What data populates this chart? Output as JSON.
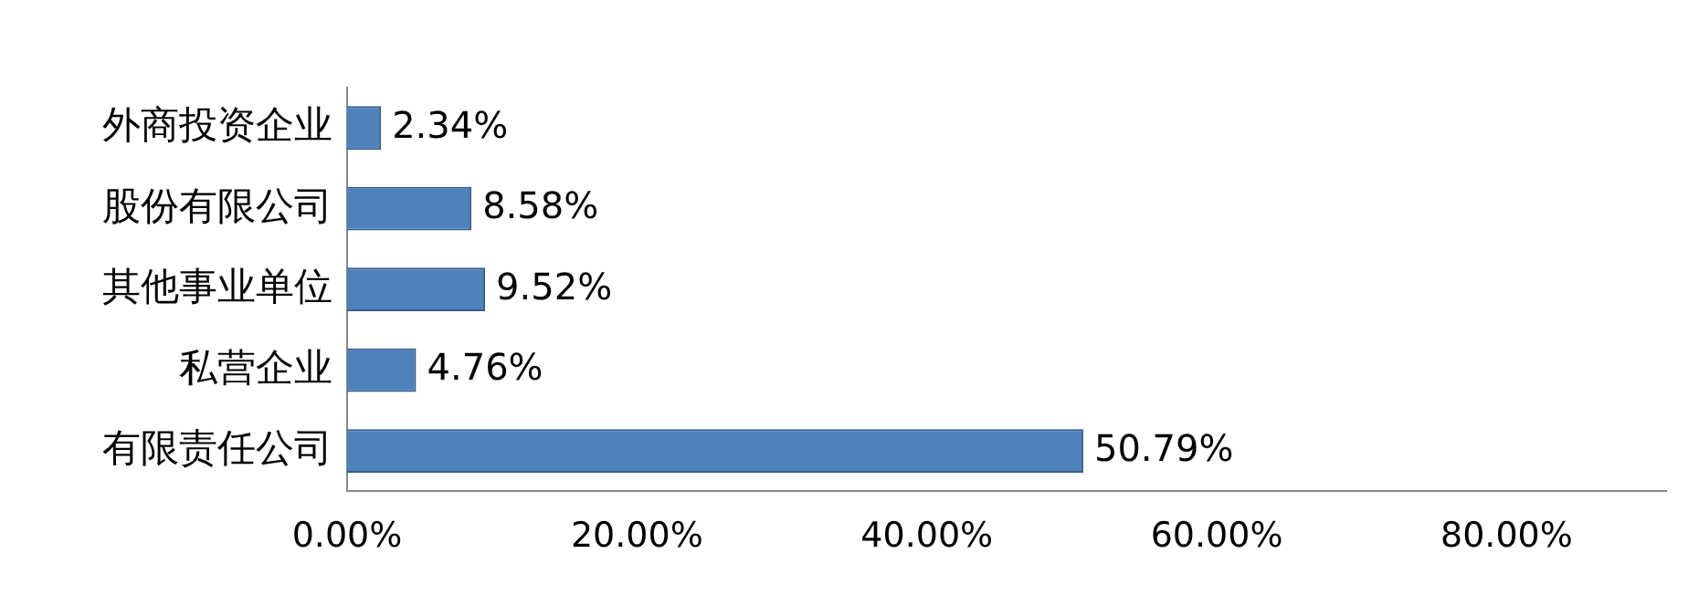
{
  "chart_data": {
    "type": "bar",
    "orientation": "horizontal",
    "categories": [
      "外商投资企业",
      "股份有限公司",
      "其他事业单位",
      "私营企业",
      "有限责任公司"
    ],
    "values": [
      2.34,
      8.58,
      9.52,
      4.76,
      50.79
    ],
    "value_labels": [
      "2.34%",
      "8.58%",
      "9.52%",
      "4.76%",
      "50.79%"
    ],
    "color": "#4f81bd",
    "xlim": [
      0,
      91
    ],
    "xticks": [
      {
        "value": 0,
        "label": "0.00%"
      },
      {
        "value": 20,
        "label": "20.00%"
      },
      {
        "value": 40,
        "label": "40.00%"
      },
      {
        "value": 60,
        "label": "60.00%"
      },
      {
        "value": 80,
        "label": "80.00%"
      }
    ],
    "grid": false,
    "legend": false
  }
}
